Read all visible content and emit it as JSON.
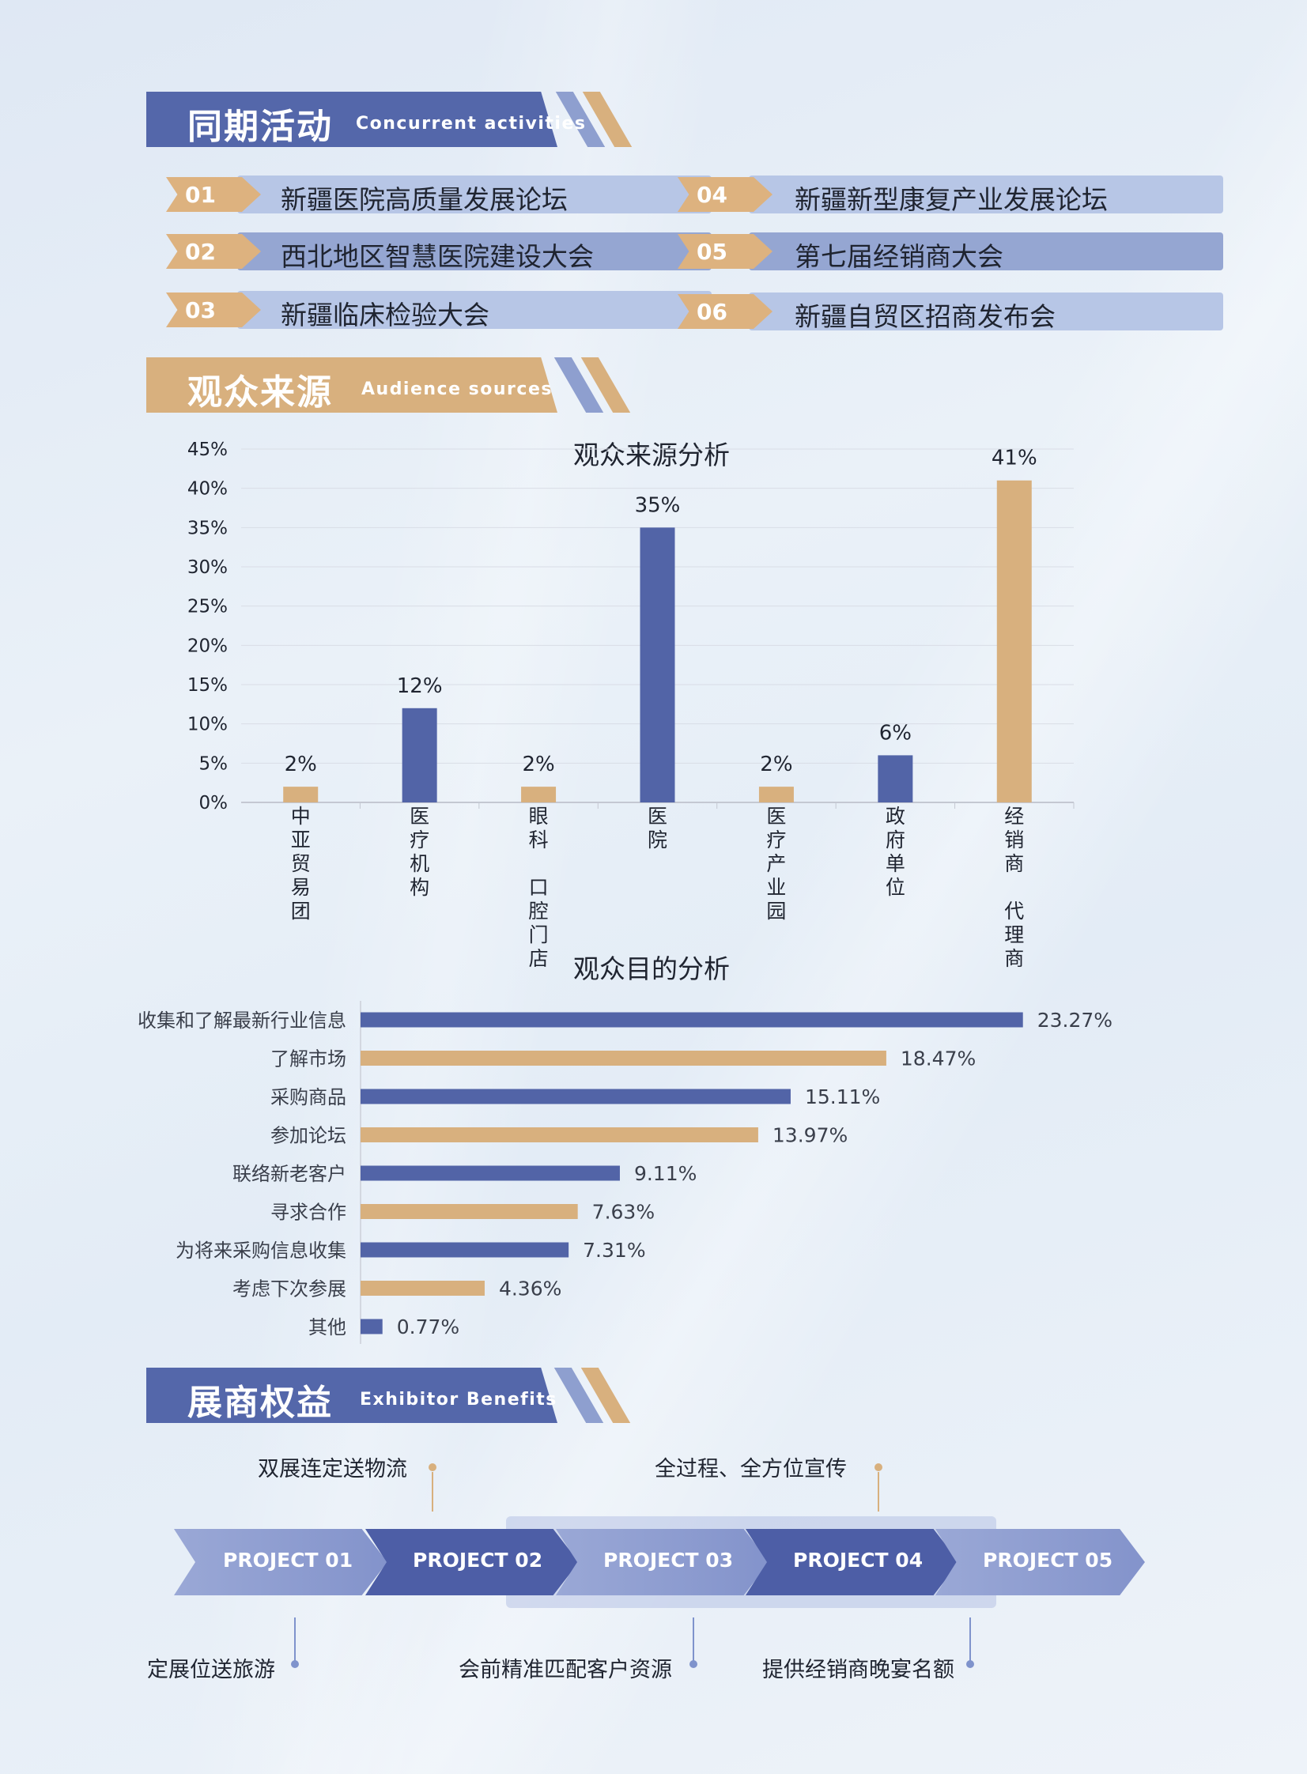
{
  "sections": {
    "concurrent": {
      "zh": "同期活动",
      "en": "Concurrent activities"
    },
    "audience": {
      "zh": "观众来源",
      "en": "Audience sources"
    },
    "benefits": {
      "zh": "展商权益",
      "en": "Exhibitor Benefits"
    }
  },
  "activities": [
    {
      "num": "01",
      "text": "新疆医院高质量发展论坛"
    },
    {
      "num": "02",
      "text": "西北地区智慧医院建设大会"
    },
    {
      "num": "03",
      "text": "新疆临床检验大会"
    },
    {
      "num": "04",
      "text": "新疆新型康复产业发展论坛"
    },
    {
      "num": "05",
      "text": "第七届经销商大会"
    },
    {
      "num": "06",
      "text": "新疆自贸区招商发布会"
    }
  ],
  "colors": {
    "blue": "#5264a7",
    "gold": "#d8b07e",
    "header_blue": "#5467aa",
    "header_gold": "#d8b07e"
  },
  "chart_data": [
    {
      "type": "bar",
      "title": "观众来源分析",
      "categories": [
        "中亚贸易团",
        "医疗机构",
        "眼科 口腔门店",
        "医院",
        "医疗产业园",
        "政府单位",
        "经销商 代理商"
      ],
      "values": [
        2,
        12,
        2,
        35,
        2,
        6,
        41
      ],
      "value_labels": [
        "2%",
        "12%",
        "2%",
        "35%",
        "2%",
        "6%",
        "41%"
      ],
      "bar_colors": [
        "gold",
        "blue",
        "gold",
        "blue",
        "gold",
        "blue",
        "gold"
      ],
      "y_ticks": [
        "0%",
        "5%",
        "10%",
        "15%",
        "20%",
        "25%",
        "30%",
        "35%",
        "40%",
        "45%"
      ],
      "ylim": [
        0,
        45
      ],
      "grid": true
    },
    {
      "type": "bar",
      "orientation": "horizontal",
      "title": "观众目的分析",
      "categories": [
        "收集和了解最新行业信息",
        "了解市场",
        "采购商品",
        "参加论坛",
        "联络新老客户",
        "寻求合作",
        "为将来采购信息收集",
        "考虑下次参展",
        "其他"
      ],
      "values": [
        23.27,
        18.47,
        15.11,
        13.97,
        9.11,
        7.63,
        7.31,
        4.36,
        0.77
      ],
      "value_labels": [
        "23.27%",
        "18.47%",
        "15.11%",
        "13.97%",
        "9.11%",
        "7.63%",
        "7.31%",
        "4.36%",
        "0.77%"
      ],
      "bar_colors": [
        "blue",
        "gold",
        "blue",
        "gold",
        "blue",
        "gold",
        "blue",
        "gold",
        "blue"
      ]
    }
  ],
  "benefits": {
    "projects": [
      "PROJECT 01",
      "PROJECT 02",
      "PROJECT 03",
      "PROJECT 04",
      "PROJECT 05"
    ],
    "top_callouts": [
      "双展连定送物流",
      "全过程、全方位宣传"
    ],
    "bottom_callouts": [
      "定展位送旅游",
      "会前精准匹配客户资源",
      "提供经销商晚宴名额"
    ]
  }
}
